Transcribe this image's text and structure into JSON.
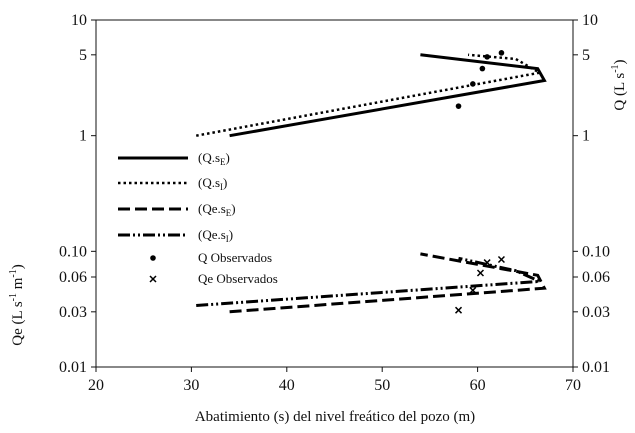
{
  "chart_data": {
    "type": "line",
    "x_axis": {
      "label": "Abatimiento (s) del nivel freático del pozo (m)",
      "range": [
        20,
        70
      ],
      "ticks": [
        20,
        30,
        40,
        50,
        60,
        70
      ]
    },
    "y_left": {
      "label": "Qe (L s-1 m-1)",
      "label_parts": {
        "main": "Qe (L s",
        "exp1": "-1",
        "mid": " m",
        "exp2": "-1",
        "end": ")"
      },
      "scale": "log",
      "range": [
        0.01,
        10
      ],
      "ticks": [
        0.01,
        0.03,
        0.06,
        0.1,
        1,
        5,
        10
      ],
      "tick_labels": [
        "0.01",
        "0.03",
        "0.06",
        "0.10",
        "1",
        "5",
        "10"
      ]
    },
    "y_right": {
      "label": "Q (L s-1)",
      "label_parts": {
        "main": "Q (L s",
        "exp1": "-1",
        "end": ")"
      },
      "scale": "log",
      "range": [
        0.01,
        10
      ],
      "ticks": [
        0.01,
        0.03,
        0.06,
        0.1,
        1,
        5,
        10
      ],
      "tick_labels": [
        "0.01",
        "0.03",
        "0.06",
        "0.10",
        "1",
        "5",
        "10"
      ]
    },
    "grid": false,
    "legend": {
      "placement": "left-middle",
      "items": [
        {
          "key": "QsE",
          "text": "(Q.s",
          "sub": "E",
          "close": ")",
          "style": "solid"
        },
        {
          "key": "QsI",
          "text": "(Q.s",
          "sub": "I",
          "close": ")",
          "style": "dotted"
        },
        {
          "key": "QesE",
          "text": "(Qe.s",
          "sub": "E",
          "close": ")",
          "style": "dashed"
        },
        {
          "key": "QesI",
          "text": "(Qe.s",
          "sub": "I",
          "close": ")",
          "style": "dashdotdot"
        },
        {
          "key": "Qobs",
          "text": "Q   Observados",
          "style": "dot"
        },
        {
          "key": "Qeobs",
          "text": "Qe Observados",
          "style": "cross"
        }
      ]
    },
    "series": [
      {
        "key": "QsE",
        "style": "solid",
        "x": [
          34,
          67,
          66.3,
          54
        ],
        "y": [
          1.0,
          3.0,
          3.8,
          5.0
        ]
      },
      {
        "key": "QsI",
        "style": "dotted",
        "x": [
          30.5,
          66.5,
          64,
          59
        ],
        "y": [
          1.0,
          3.5,
          4.6,
          5.0
        ]
      },
      {
        "key": "QesE",
        "style": "dashed",
        "x": [
          34,
          67,
          66.3,
          54
        ],
        "y": [
          0.03,
          0.048,
          0.062,
          0.095
        ]
      },
      {
        "key": "QesI",
        "style": "dashdotdot",
        "x": [
          30.5,
          66.5,
          64,
          58
        ],
        "y": [
          0.034,
          0.055,
          0.068,
          0.087
        ]
      },
      {
        "key": "Qobs",
        "style": "dot",
        "points": [
          [
            58,
            1.8
          ],
          [
            59.5,
            2.8
          ],
          [
            60.5,
            3.8
          ],
          [
            61,
            4.8
          ],
          [
            62.5,
            5.2
          ]
        ]
      },
      {
        "key": "Qeobs",
        "style": "cross",
        "points": [
          [
            58,
            0.031
          ],
          [
            59.5,
            0.046
          ],
          [
            60.3,
            0.065
          ],
          [
            61,
            0.08
          ],
          [
            62.5,
            0.085
          ]
        ]
      }
    ]
  }
}
